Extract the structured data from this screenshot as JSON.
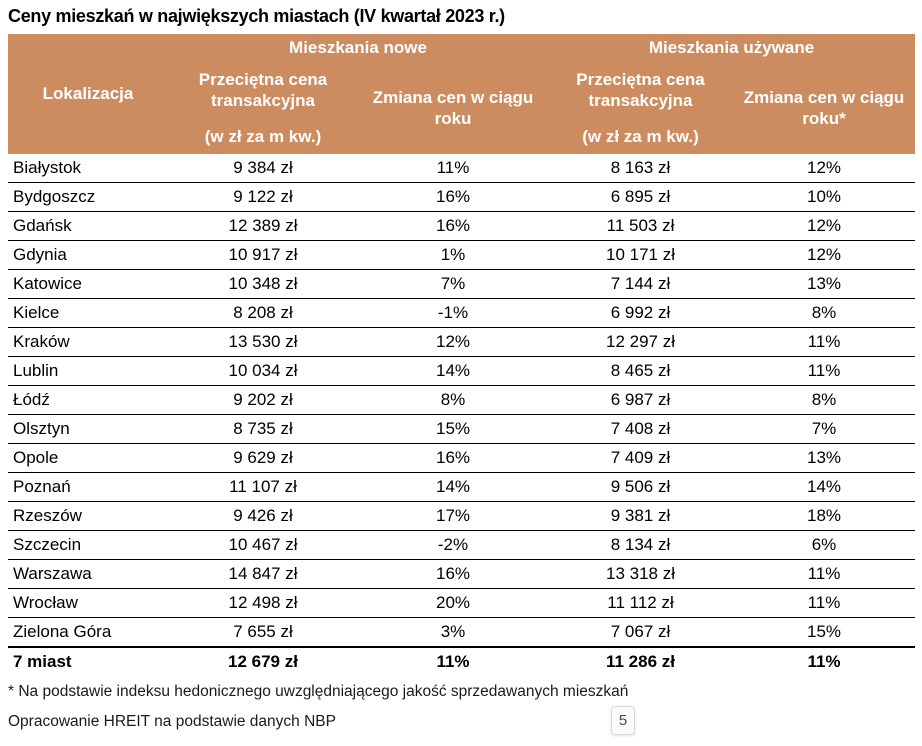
{
  "title": "Ceny mieszkań w największych miastach (IV kwartał 2023 r.)",
  "colors": {
    "header_bg": "#CC8C60",
    "header_text": "#FFFFFF",
    "row_separator": "#000000"
  },
  "table": {
    "group_headers": [
      "Mieszkania nowe",
      "Mieszkania używane"
    ],
    "col_headers": {
      "location": "Lokalizacja",
      "price_new_label": "Przeciętna cena transakcyjna",
      "price_new_unit": "(w zł za m kw.)",
      "change_new_label": "Zmiana cen w ciągu roku",
      "price_used_label": "Przeciętna cena transakcyjna",
      "price_used_unit": "(w zł za m kw.)",
      "change_used_label": "Zmiana cen w ciągu roku*"
    },
    "rows": [
      {
        "city": "Białystok",
        "price_new": "9 384 zł",
        "change_new": "11%",
        "price_used": "8 163 zł",
        "change_used": "12%"
      },
      {
        "city": "Bydgoszcz",
        "price_new": "9 122 zł",
        "change_new": "16%",
        "price_used": "6 895 zł",
        "change_used": "10%"
      },
      {
        "city": "Gdańsk",
        "price_new": "12 389 zł",
        "change_new": "16%",
        "price_used": "11 503 zł",
        "change_used": "12%"
      },
      {
        "city": "Gdynia",
        "price_new": "10 917 zł",
        "change_new": "1%",
        "price_used": "10 171 zł",
        "change_used": "12%"
      },
      {
        "city": "Katowice",
        "price_new": "10 348 zł",
        "change_new": "7%",
        "price_used": "7 144 zł",
        "change_used": "13%"
      },
      {
        "city": "Kielce",
        "price_new": "8 208 zł",
        "change_new": "-1%",
        "price_used": "6 992 zł",
        "change_used": "8%"
      },
      {
        "city": "Kraków",
        "price_new": "13 530 zł",
        "change_new": "12%",
        "price_used": "12 297 zł",
        "change_used": "11%"
      },
      {
        "city": "Lublin",
        "price_new": "10 034 zł",
        "change_new": "14%",
        "price_used": "8 465 zł",
        "change_used": "11%"
      },
      {
        "city": "Łódź",
        "price_new": "9 202 zł",
        "change_new": "8%",
        "price_used": "6 987 zł",
        "change_used": "8%"
      },
      {
        "city": "Olsztyn",
        "price_new": "8 735 zł",
        "change_new": "15%",
        "price_used": "7 408 zł",
        "change_used": "7%"
      },
      {
        "city": "Opole",
        "price_new": "9 629 zł",
        "change_new": "16%",
        "price_used": "7 409 zł",
        "change_used": "13%"
      },
      {
        "city": "Poznań",
        "price_new": "11 107 zł",
        "change_new": "14%",
        "price_used": "9 506 zł",
        "change_used": "14%"
      },
      {
        "city": "Rzeszów",
        "price_new": "9 426 zł",
        "change_new": "17%",
        "price_used": "9 381 zł",
        "change_used": "18%"
      },
      {
        "city": "Szczecin",
        "price_new": "10 467 zł",
        "change_new": "-2%",
        "price_used": "8 134 zł",
        "change_used": "6%"
      },
      {
        "city": "Warszawa",
        "price_new": "14 847 zł",
        "change_new": "16%",
        "price_used": "13 318 zł",
        "change_used": "11%"
      },
      {
        "city": "Wrocław",
        "price_new": "12 498 zł",
        "change_new": "20%",
        "price_used": "11 112 zł",
        "change_used": "11%"
      },
      {
        "city": "Zielona Góra",
        "price_new": "7 655 zł",
        "change_new": "3%",
        "price_used": "7 067 zł",
        "change_used": "15%"
      },
      {
        "city": "7 miast",
        "price_new": "12 679 zł",
        "change_new": "11%",
        "price_used": "11 286 zł",
        "change_used": "11%",
        "total": true
      }
    ]
  },
  "footnotes": [
    "* Na podstawie indeksu hedonicznego uwzględniającego jakość sprzedawanych mieszkań",
    "Opracowanie HREIT na podstawie danych NBP"
  ],
  "page_number": "5"
}
